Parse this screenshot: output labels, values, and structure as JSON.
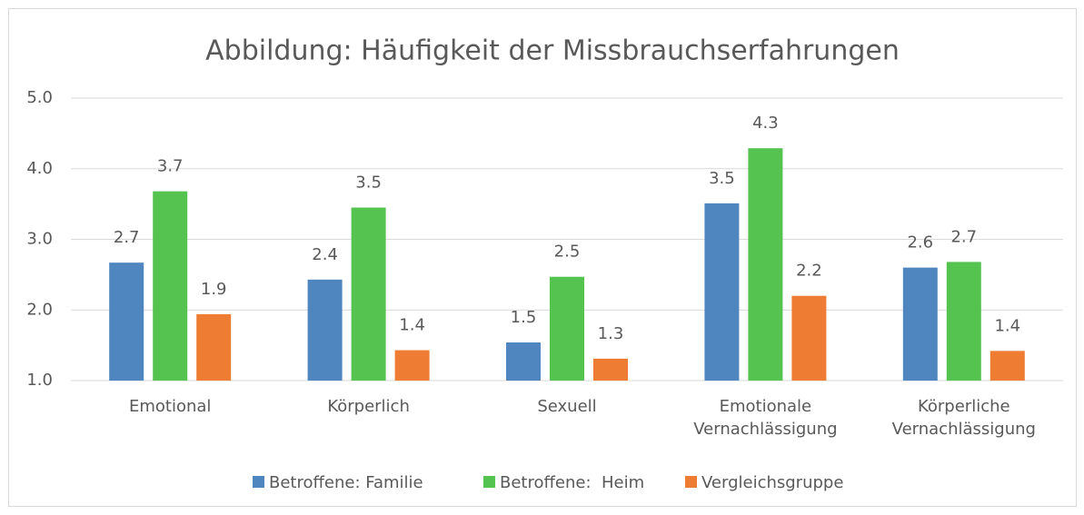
{
  "chart_data": {
    "type": "bar",
    "title": "Abbildung: Häufigkeit der Missbrauchserfahrungen",
    "categories": [
      "Emotional",
      "Körperlich",
      "Sexuell",
      "Emotionale Vernachlässigung",
      "Körperliche Vernachlässigung"
    ],
    "series": [
      {
        "name": "Betroffene: Familie",
        "color": "#4f86c0",
        "values": [
          2.67,
          2.43,
          1.54,
          3.51,
          2.6
        ],
        "value_labels": [
          "2.7",
          "2.4",
          "1.5",
          "3.5",
          "2.6"
        ]
      },
      {
        "name": "Betroffene:  Heim",
        "color": "#55c350",
        "values": [
          3.68,
          3.45,
          2.47,
          4.29,
          2.68
        ],
        "value_labels": [
          "3.7",
          "3.5",
          "2.5",
          "4.3",
          "2.7"
        ]
      },
      {
        "name": "Vergleichsgruppe",
        "color": "#ee7d33",
        "values": [
          1.94,
          1.43,
          1.31,
          2.2,
          1.42
        ],
        "value_labels": [
          "1.9",
          "1.4",
          "1.3",
          "2.2",
          "1.4"
        ]
      }
    ],
    "ylim": [
      1,
      5
    ],
    "yticks": [
      {
        "value": 1,
        "label": "1.0"
      },
      {
        "value": 2,
        "label": "2.0"
      },
      {
        "value": 3,
        "label": "3.0"
      },
      {
        "value": 4,
        "label": "4.0"
      },
      {
        "value": 5,
        "label": "5.0"
      }
    ],
    "grid": true,
    "legend": "bottom"
  }
}
